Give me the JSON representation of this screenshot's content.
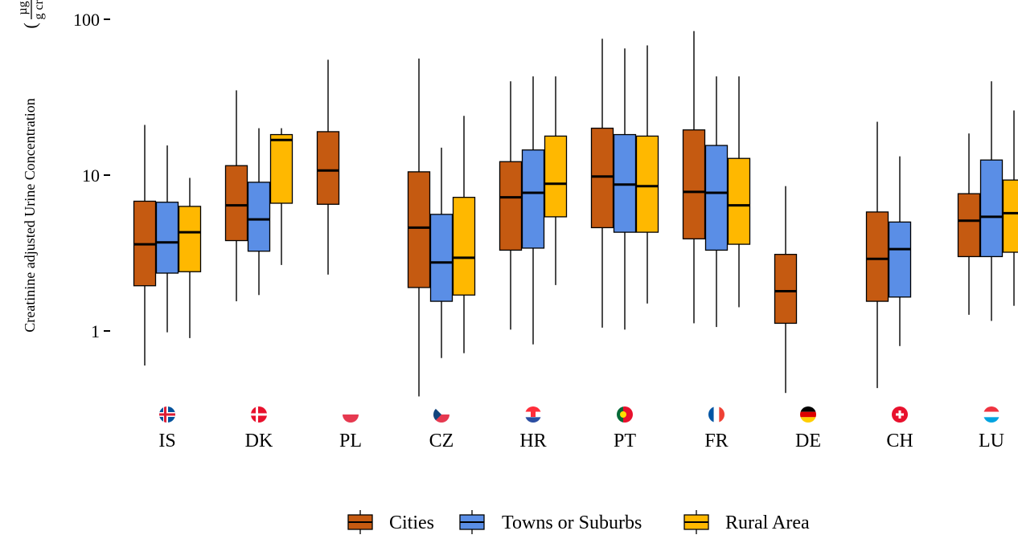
{
  "chart_data": {
    "type": "boxplot",
    "title": "",
    "xlabel": "",
    "ylabel": "Creatinine adjusted Urine Concentration",
    "ylabel_unit_numerator": "µg",
    "ylabel_unit_denominator": "g crt",
    "y_scale": "log10",
    "ylim": [
      0.35,
      100
    ],
    "y_ticks": [
      1,
      10,
      100
    ],
    "y_tick_labels": [
      "1",
      "10",
      "100"
    ],
    "grid": false,
    "legend_position": "bottom",
    "categories": [
      "IS",
      "DK",
      "PL",
      "CZ",
      "HR",
      "PT",
      "FR",
      "DE",
      "CH",
      "LU"
    ],
    "series": [
      {
        "name": "Cities",
        "color": "#c55a11",
        "boxes": [
          {
            "category": "IS",
            "min": 0.6,
            "q1": 1.95,
            "median": 3.6,
            "q3": 6.8,
            "max": 21
          },
          {
            "category": "DK",
            "min": 1.55,
            "q1": 3.8,
            "median": 6.4,
            "q3": 11.5,
            "max": 35
          },
          {
            "category": "PL",
            "min": 2.3,
            "q1": 6.5,
            "median": 10.7,
            "q3": 19,
            "max": 55
          },
          {
            "category": "CZ",
            "min": 0.38,
            "q1": 1.9,
            "median": 4.6,
            "q3": 10.5,
            "max": 56
          },
          {
            "category": "HR",
            "min": 1.02,
            "q1": 3.3,
            "median": 7.2,
            "q3": 12.2,
            "max": 40
          },
          {
            "category": "PT",
            "min": 1.05,
            "q1": 4.6,
            "median": 9.8,
            "q3": 20,
            "max": 75
          },
          {
            "category": "FR",
            "min": 1.12,
            "q1": 3.9,
            "median": 7.8,
            "q3": 19.5,
            "max": 84
          },
          {
            "category": "DE",
            "min": 0.4,
            "q1": 1.12,
            "median": 1.8,
            "q3": 3.1,
            "max": 8.5
          },
          {
            "category": "CH",
            "min": 0.43,
            "q1": 1.55,
            "median": 2.9,
            "q3": 5.8,
            "max": 22
          },
          {
            "category": "LU",
            "min": 1.27,
            "q1": 3.0,
            "median": 5.1,
            "q3": 7.6,
            "max": 18.5
          }
        ]
      },
      {
        "name": "Towns or Suburbs",
        "color": "#5a8ee6",
        "boxes": [
          {
            "category": "IS",
            "min": 0.98,
            "q1": 2.35,
            "median": 3.7,
            "q3": 6.7,
            "max": 15.5
          },
          {
            "category": "DK",
            "min": 1.7,
            "q1": 3.25,
            "median": 5.2,
            "q3": 9.0,
            "max": 20
          },
          {
            "category": "CZ",
            "min": 0.67,
            "q1": 1.55,
            "median": 2.75,
            "q3": 5.6,
            "max": 15
          },
          {
            "category": "HR",
            "min": 0.82,
            "q1": 3.4,
            "median": 7.7,
            "q3": 14.5,
            "max": 43
          },
          {
            "category": "PT",
            "min": 1.02,
            "q1": 4.3,
            "median": 8.7,
            "q3": 18.2,
            "max": 65
          },
          {
            "category": "FR",
            "min": 1.06,
            "q1": 3.3,
            "median": 7.7,
            "q3": 15.5,
            "max": 43
          },
          {
            "category": "CH",
            "min": 0.8,
            "q1": 1.65,
            "median": 3.35,
            "q3": 5.0,
            "max": 13.2
          },
          {
            "category": "LU",
            "min": 1.16,
            "q1": 3.0,
            "median": 5.4,
            "q3": 12.5,
            "max": 40
          }
        ]
      },
      {
        "name": "Rural Area",
        "color": "#ffb800",
        "boxes": [
          {
            "category": "IS",
            "min": 0.9,
            "q1": 2.4,
            "median": 4.3,
            "q3": 6.3,
            "max": 9.6
          },
          {
            "category": "DK",
            "min": 2.65,
            "q1": 6.6,
            "median": 16.8,
            "q3": 18.2,
            "max": 20
          },
          {
            "category": "CZ",
            "min": 0.72,
            "q1": 1.7,
            "median": 2.95,
            "q3": 7.2,
            "max": 24
          },
          {
            "category": "HR",
            "min": 1.97,
            "q1": 5.4,
            "median": 8.8,
            "q3": 17.8,
            "max": 43
          },
          {
            "category": "PT",
            "min": 1.5,
            "q1": 4.3,
            "median": 8.5,
            "q3": 17.8,
            "max": 68
          },
          {
            "category": "FR",
            "min": 1.42,
            "q1": 3.6,
            "median": 6.4,
            "q3": 12.8,
            "max": 43
          },
          {
            "category": "LU",
            "min": 1.45,
            "q1": 3.2,
            "median": 5.7,
            "q3": 9.3,
            "max": 26
          }
        ]
      }
    ],
    "flag_icons": [
      "flag-iceland-icon",
      "flag-denmark-icon",
      "flag-poland-icon",
      "flag-czechia-icon",
      "flag-croatia-icon",
      "flag-portugal-icon",
      "flag-france-icon",
      "flag-germany-icon",
      "flag-switzerland-icon",
      "flag-luxembourg-icon"
    ]
  }
}
